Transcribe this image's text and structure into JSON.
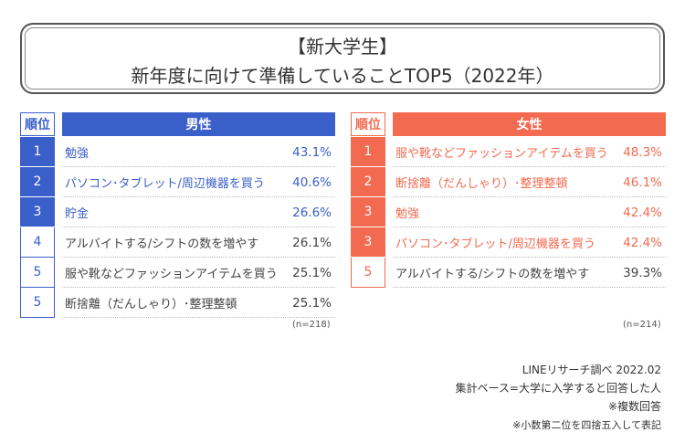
{
  "title": {
    "line1": "【新大学生】",
    "line2": "新年度に向けて準備していることTOP5（2022年）"
  },
  "chart_data": {
    "type": "table",
    "rank_header": "順位",
    "tables": [
      {
        "header": "男性",
        "n": "(n=218)",
        "rows": [
          {
            "rank": "1",
            "item": "勉強",
            "value": "43.1%",
            "highlight": true
          },
          {
            "rank": "2",
            "item": "パソコン･タブレット/周辺機器を買う",
            "value": "40.6%",
            "highlight": true
          },
          {
            "rank": "3",
            "item": "貯金",
            "value": "26.6%",
            "highlight": true
          },
          {
            "rank": "4",
            "item": "アルバイトする/シフトの数を増やす",
            "value": "26.1%",
            "highlight": false
          },
          {
            "rank": "5",
            "item": "服や靴などファッションアイテムを買う",
            "value": "25.1%",
            "highlight": false
          },
          {
            "rank": "5",
            "item": "断捨離（だんしゃり）･整理整頓",
            "value": "25.1%",
            "highlight": false
          }
        ]
      },
      {
        "header": "女性",
        "n": "(n=214)",
        "rows": [
          {
            "rank": "1",
            "item": "服や靴などファッションアイテムを買う",
            "value": "48.3%",
            "highlight": true
          },
          {
            "rank": "2",
            "item": "断捨離（だんしゃり）･整理整頓",
            "value": "46.1%",
            "highlight": true
          },
          {
            "rank": "3",
            "item": "勉強",
            "value": "42.4%",
            "highlight": true
          },
          {
            "rank": "3",
            "item": "パソコン･タブレット/周辺機器を買う",
            "value": "42.4%",
            "highlight": true
          },
          {
            "rank": "5",
            "item": "アルバイトする/シフトの数を増やす",
            "value": "39.3%",
            "highlight": false
          }
        ]
      }
    ]
  },
  "notes": [
    "LINEリサーチ調べ 2022.02",
    "集計ベース=大学に入学すると回答した人",
    "※複数回答",
    "※小数第二位を四捨五入して表記"
  ],
  "colors": {
    "male": "#3a5fc8",
    "female": "#f26a4f"
  }
}
